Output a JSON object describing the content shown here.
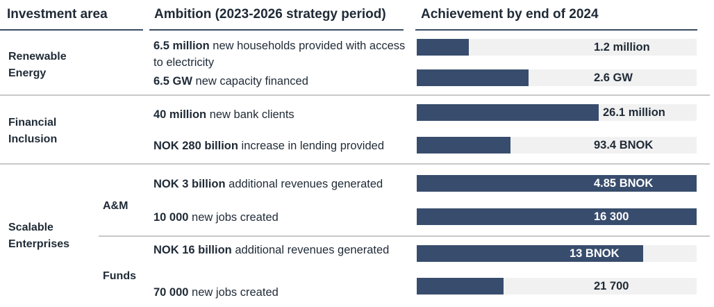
{
  "headers": {
    "area": "Investment area",
    "ambition": "Ambition (2023-2026 strategy period)",
    "achievement": "Achievement by end of 2024"
  },
  "groups": {
    "renewable": "Renewable Energy",
    "financial": "Financial Inclusion",
    "scalable": "Scalable Enterprises",
    "am": "A&M",
    "funds": "Funds"
  },
  "chart_data": {
    "type": "bar",
    "title": "Achievement by end of 2024",
    "rows": [
      {
        "target_bold": "6.5 million",
        "target_rest": " new households provided with access to electricity",
        "achieved": "1.2 million",
        "fraction": 0.185
      },
      {
        "target_bold": "6.5 GW",
        "target_rest": " new capacity financed",
        "achieved": "2.6 GW",
        "fraction": 0.4
      },
      {
        "target_bold": "40 million",
        "target_rest": " new bank clients",
        "achieved": "26.1 million",
        "fraction": 0.65
      },
      {
        "target_bold": "NOK 280 billion",
        "target_rest": " increase in lending provided",
        "achieved": "93.4 BNOK",
        "fraction": 0.334
      },
      {
        "target_bold": "NOK 3 billion",
        "target_rest": " additional revenues generated",
        "achieved": "4.85 BNOK",
        "fraction": 1.0
      },
      {
        "target_bold": "10 000",
        "target_rest": " new jobs created",
        "achieved": "16 300",
        "fraction": 1.0
      },
      {
        "target_bold": "NOK 16 billion",
        "target_rest": " additional revenues generated",
        "achieved": "13 BNOK",
        "fraction": 0.81
      },
      {
        "target_bold": "70 000",
        "target_rest": " new jobs created",
        "achieved": "21 700",
        "fraction": 0.31
      }
    ],
    "colors": {
      "fill": "#384d6d",
      "track": "#f1f1f1"
    }
  }
}
